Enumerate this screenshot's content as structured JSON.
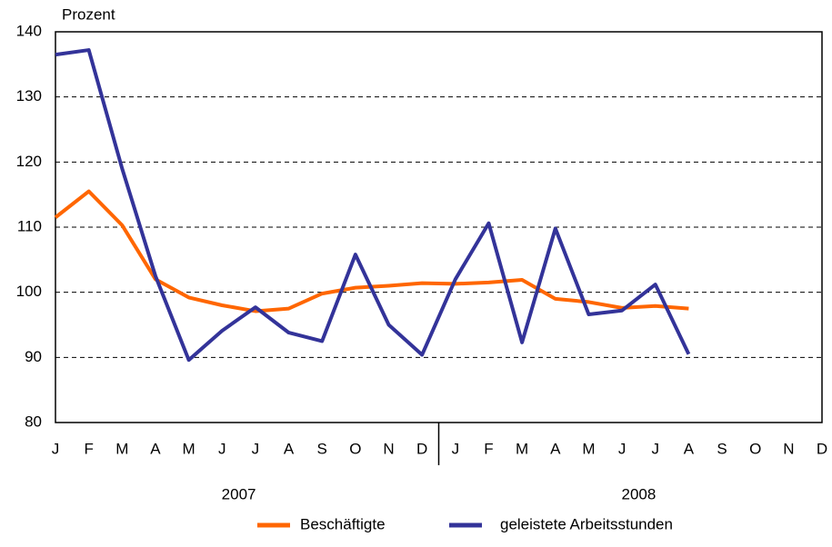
{
  "chart_data": {
    "type": "line",
    "y_label": "Prozent",
    "categories": [
      "J",
      "F",
      "M",
      "A",
      "M",
      "J",
      "J",
      "A",
      "S",
      "O",
      "N",
      "D",
      "J",
      "F",
      "M",
      "A",
      "M",
      "J",
      "J",
      "A",
      "S",
      "O",
      "N",
      "D"
    ],
    "groups": [
      "2007",
      "2008"
    ],
    "series": [
      {
        "name": "Beschäftigte",
        "color": "#ff6600",
        "values": [
          111.5,
          115.5,
          110.3,
          102,
          99.2,
          98,
          97.1,
          97.5,
          99.8,
          100.7,
          101,
          101.4,
          101.3,
          101.5,
          101.9,
          99,
          98.5,
          97.6,
          97.9,
          97.5,
          null,
          null,
          null,
          null
        ]
      },
      {
        "name": "geleistete Arbeitsstunden",
        "color": "#333399",
        "values": [
          136.5,
          137.2,
          119,
          102.5,
          89.6,
          94.1,
          97.7,
          93.8,
          92.5,
          105.8,
          95,
          90.4,
          102,
          110.6,
          92.3,
          109.8,
          96.6,
          97.2,
          101.2,
          90.5,
          null,
          null,
          null,
          null
        ]
      }
    ],
    "ylim": [
      80,
      140
    ],
    "yticks": [
      80,
      90,
      100,
      110,
      120,
      130,
      140
    ],
    "grid": true
  }
}
